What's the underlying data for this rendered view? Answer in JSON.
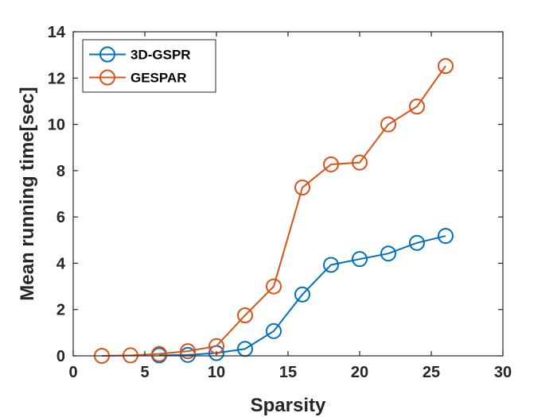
{
  "chart_data": {
    "type": "line",
    "xlabel": "Sparsity",
    "ylabel": "Mean running time[sec]",
    "xlim": [
      0,
      30
    ],
    "ylim": [
      0,
      14
    ],
    "xticks": [
      "0",
      "5",
      "10",
      "15",
      "20",
      "25",
      "30"
    ],
    "yticks": [
      "0",
      "2",
      "4",
      "6",
      "8",
      "10",
      "12",
      "14"
    ],
    "grid": false,
    "legend": "top-left",
    "series": [
      {
        "name": "3D-GSPR",
        "color": "#0072BD",
        "marker": "circle",
        "x": [
          6,
          8,
          10,
          12,
          14,
          16,
          18,
          20,
          22,
          24,
          26
        ],
        "y": [
          0.02,
          0.04,
          0.12,
          0.3,
          1.07,
          2.65,
          3.93,
          4.18,
          4.42,
          4.88,
          5.18
        ]
      },
      {
        "name": "GESPAR",
        "color": "#D95319",
        "marker": "circle",
        "x": [
          2,
          4,
          6,
          8,
          10,
          12,
          14,
          16,
          18,
          20,
          22,
          24,
          26
        ],
        "y": [
          0.0,
          0.02,
          0.08,
          0.2,
          0.42,
          1.75,
          3.0,
          7.27,
          8.27,
          8.35,
          10.0,
          10.77,
          12.52
        ]
      }
    ]
  }
}
